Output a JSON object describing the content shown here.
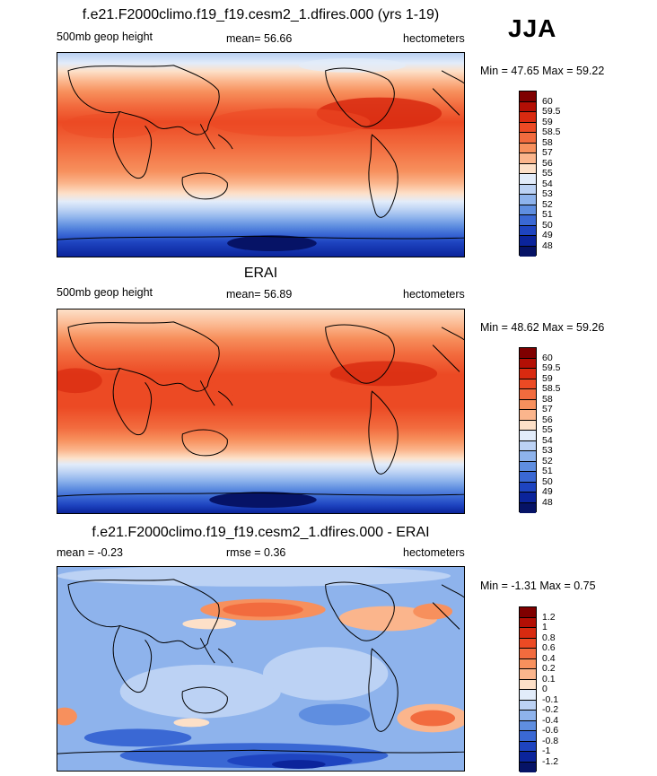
{
  "season": "JJA",
  "panels": [
    {
      "title": "f.e21.F2000climo.f19_f19.cesm2_1.dfires.000 (yrs 1-19)",
      "left_label": "500mb geop height",
      "center_label": "mean=  56.66",
      "units": "hectometers",
      "minmax": "Min =  47.65 Max =  59.22",
      "colorbar": {
        "labels": [
          "60",
          "59.5",
          "59",
          "58.5",
          "58",
          "57",
          "56",
          "55",
          "54",
          "53",
          "52",
          "51",
          "50",
          "49",
          "48"
        ],
        "colors": [
          "#7f0000",
          "#b30f05",
          "#d82a10",
          "#ec4a24",
          "#f26b3e",
          "#f7905d",
          "#fbb58c",
          "#fde0c8",
          "#e2ecfa",
          "#bcd2f4",
          "#8eb3ec",
          "#5f8ee0",
          "#3a68d4",
          "#1e44c0",
          "#0b249b",
          "#061366"
        ]
      }
    },
    {
      "title": "ERAI",
      "left_label": "500mb geop height",
      "center_label": "mean=  56.89",
      "units": "hectometers",
      "minmax": "Min =  48.62 Max =  59.26",
      "colorbar": {
        "labels": [
          "60",
          "59.5",
          "59",
          "58.5",
          "58",
          "57",
          "56",
          "55",
          "54",
          "53",
          "52",
          "51",
          "50",
          "49",
          "48"
        ],
        "colors": [
          "#7f0000",
          "#b30f05",
          "#d82a10",
          "#ec4a24",
          "#f26b3e",
          "#f7905d",
          "#fbb58c",
          "#fde0c8",
          "#e2ecfa",
          "#bcd2f4",
          "#8eb3ec",
          "#5f8ee0",
          "#3a68d4",
          "#1e44c0",
          "#0b249b",
          "#061366"
        ]
      }
    },
    {
      "title": "f.e21.F2000climo.f19_f19.cesm2_1.dfires.000 - ERAI",
      "left_label": "mean =  -0.23",
      "center_label": "rmse =   0.36",
      "units": "hectometers",
      "minmax": "Min =  -1.31 Max =   0.75",
      "colorbar": {
        "labels": [
          "1.2",
          "1",
          "0.8",
          "0.6",
          "0.4",
          "0.2",
          "0.1",
          "0",
          "-0.1",
          "-0.2",
          "-0.4",
          "-0.6",
          "-0.8",
          "-1",
          "-1.2"
        ],
        "colors": [
          "#7f0000",
          "#b30f05",
          "#d82a10",
          "#ec4a24",
          "#f26b3e",
          "#f7905d",
          "#fbb58c",
          "#fde0c8",
          "#e2ecfa",
          "#bcd2f4",
          "#8eb3ec",
          "#5f8ee0",
          "#3a68d4",
          "#1e44c0",
          "#0b249b",
          "#061366"
        ]
      }
    }
  ]
}
